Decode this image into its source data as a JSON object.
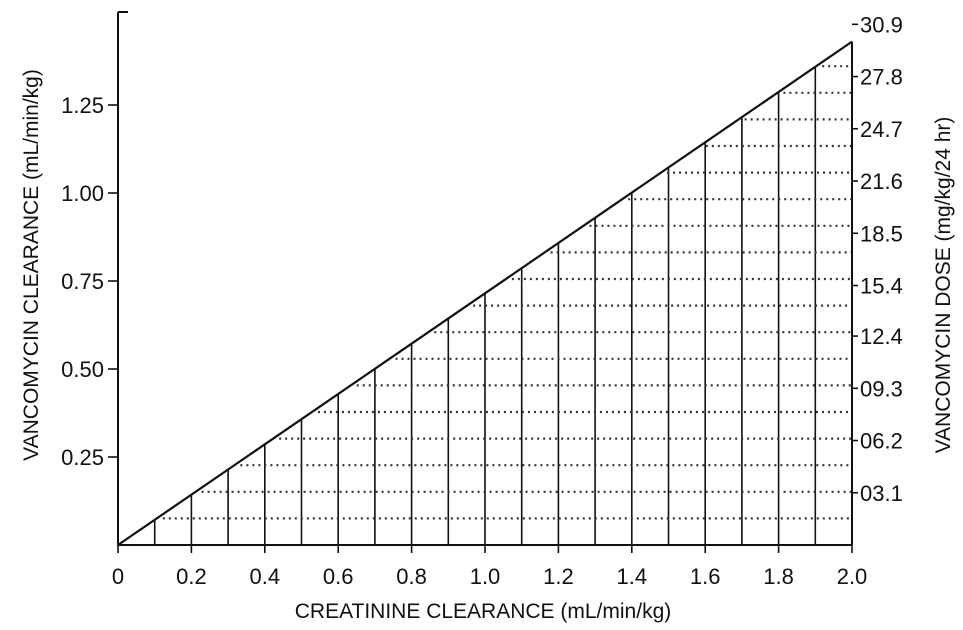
{
  "chart_data": {
    "type": "area",
    "title": "",
    "xlabel": "CREATININE CLEARANCE (mL/min/kg)",
    "ylabel_left": "VANCOMYCIN CLEARANCE (mL/min/kg)",
    "ylabel_right": "VANCOMYCIN DOSE (mg/kg/24 hr)",
    "x_ticks": [
      "0",
      "0.2",
      "0.4",
      "0.6",
      "0.8",
      "1.0",
      "1.2",
      "1.4",
      "1.6",
      "1.8",
      "2.0"
    ],
    "y_left_ticks": [
      "0.25",
      "0.50",
      "0.75",
      "1.00",
      "1.25"
    ],
    "y_right_ticks": [
      "03.1",
      "06.2",
      "09.3",
      "12.4",
      "15.4",
      "18.5",
      "21.6",
      "24.7",
      "27.8",
      "30.9"
    ],
    "xlim": [
      0,
      2.0
    ],
    "ylim_left": [
      0,
      1.5
    ],
    "ylim_right": [
      0,
      30.9
    ],
    "series": [
      {
        "x": [
          0,
          2.0
        ],
        "y": [
          0,
          1.43
        ]
      }
    ],
    "grid": "vertical lines every 0.1 and dotted horizontal lines under the line",
    "fill": "dotted"
  }
}
